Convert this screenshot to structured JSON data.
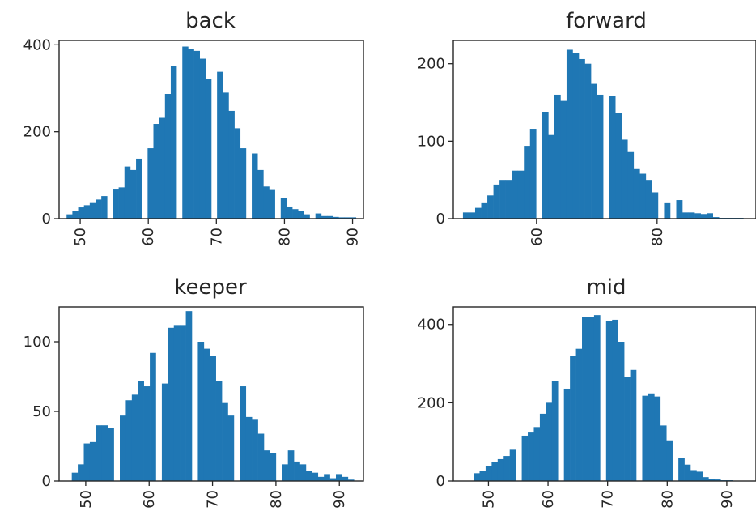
{
  "chart_data": [
    {
      "type": "bar",
      "title": "back",
      "xlim": [
        46.9,
        91.6
      ],
      "ylim": [
        0,
        410
      ],
      "xticks": [
        50,
        60,
        70,
        80,
        90
      ],
      "yticks": [
        0,
        200,
        400
      ],
      "bin_edges": [
        48.0,
        90.5
      ],
      "counts": [
        10,
        18,
        26,
        31,
        36,
        44,
        52,
        0,
        67,
        72,
        120,
        112,
        138,
        0,
        162,
        218,
        232,
        287,
        352,
        0,
        396,
        390,
        386,
        368,
        322,
        0,
        338,
        290,
        248,
        208,
        162,
        0,
        150,
        112,
        74,
        66,
        0,
        48,
        28,
        22,
        18,
        10,
        0,
        12,
        6,
        6,
        4,
        3,
        3,
        3
      ]
    },
    {
      "type": "bar",
      "title": "forward",
      "xlim": [
        46.2,
        96.4
      ],
      "ylim": [
        0,
        230
      ],
      "xticks": [
        60,
        80
      ],
      "yticks": [
        0,
        100,
        200
      ],
      "bin_edges": [
        47.8,
        94.3
      ],
      "counts": [
        8,
        8,
        14,
        20,
        30,
        44,
        50,
        50,
        62,
        62,
        94,
        116,
        0,
        138,
        108,
        160,
        152,
        218,
        214,
        206,
        200,
        174,
        160,
        0,
        158,
        136,
        102,
        86,
        64,
        58,
        50,
        34,
        0,
        20,
        0,
        24,
        8,
        8,
        7,
        6,
        7,
        2,
        1,
        1,
        1,
        1
      ]
    },
    {
      "type": "bar",
      "title": "keeper",
      "xlim": [
        45.8,
        93.8
      ],
      "ylim": [
        0,
        125
      ],
      "xticks": [
        50,
        60,
        70,
        80,
        90
      ],
      "yticks": [
        0,
        50,
        100
      ],
      "bin_edges": [
        47.8,
        92.3
      ],
      "counts": [
        6,
        12,
        27,
        28,
        40,
        40,
        38,
        0,
        47,
        58,
        62,
        72,
        68,
        92,
        0,
        70,
        110,
        112,
        112,
        122,
        0,
        100,
        95,
        90,
        72,
        56,
        47,
        0,
        68,
        46,
        44,
        34,
        22,
        20,
        0,
        12,
        22,
        14,
        12,
        7,
        6,
        3,
        5,
        2,
        5,
        3,
        1
      ]
    },
    {
      "type": "bar",
      "title": "mid",
      "xlim": [
        44.1,
        94.9
      ],
      "ylim": [
        0,
        445
      ],
      "xticks": [
        50,
        60,
        70,
        80,
        90
      ],
      "yticks": [
        0,
        200,
        400
      ],
      "bin_edges": [
        47.5,
        93.0
      ],
      "counts": [
        20,
        26,
        38,
        48,
        56,
        64,
        80,
        0,
        116,
        124,
        138,
        172,
        200,
        256,
        0,
        236,
        320,
        338,
        420,
        420,
        424,
        0,
        408,
        412,
        356,
        266,
        284,
        0,
        218,
        224,
        216,
        142,
        104,
        0,
        58,
        42,
        28,
        24,
        10,
        6,
        4,
        2,
        2,
        1,
        1
      ]
    }
  ]
}
